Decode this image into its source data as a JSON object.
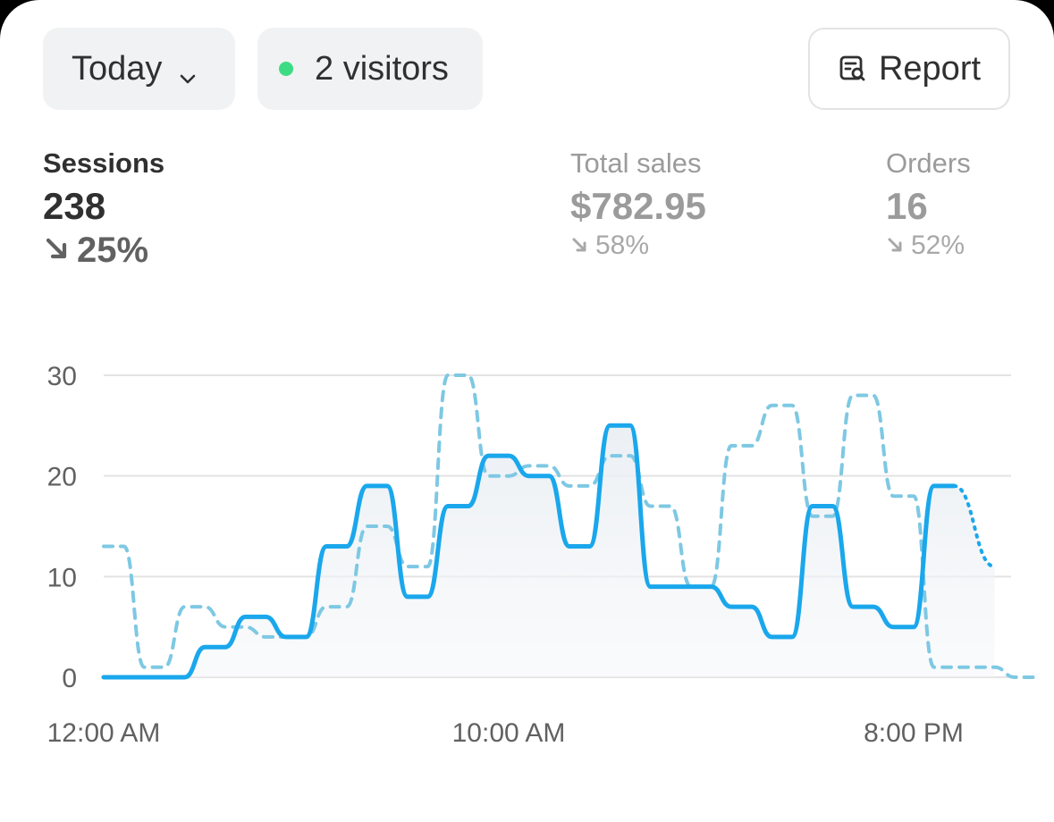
{
  "toolbar": {
    "date_range": "Today",
    "visitors_label": "2 visitors",
    "report_label": "Report",
    "live_color": "#3ddc84"
  },
  "metrics": {
    "sessions": {
      "label": "Sessions",
      "value": "238",
      "change": "25%"
    },
    "total_sales": {
      "label": "Total sales",
      "value": "$782.95",
      "change": "58%"
    },
    "orders": {
      "label": "Orders",
      "value": "16",
      "change": "52%"
    }
  },
  "chart_data": {
    "type": "line",
    "xlabel": "",
    "ylabel": "",
    "ylim": [
      0,
      30
    ],
    "y_ticks": [
      "0",
      "10",
      "20",
      "30"
    ],
    "x_tick_labels": [
      "12:00 AM",
      "10:00 AM",
      "8:00 PM"
    ],
    "x_tick_hours": [
      0,
      10,
      20
    ],
    "grid": true,
    "series": [
      {
        "style": "solid",
        "color": "#1aa7ec",
        "hours": [
          0,
          0.5,
          1,
          1.5,
          2,
          2.5,
          3,
          3.5,
          4,
          4.5,
          5,
          5.5,
          6,
          6.5,
          7,
          7.5,
          8,
          8.5,
          9,
          9.5,
          10,
          10.5,
          11,
          11.5,
          12,
          12.5,
          13,
          13.5,
          14,
          14.5,
          15,
          15.5,
          16,
          16.5,
          17,
          17.5,
          18,
          18.5,
          19,
          19.5,
          20,
          20.5,
          21
        ],
        "values": [
          0,
          0,
          0,
          0,
          0,
          3,
          3,
          6,
          6,
          4,
          4,
          13,
          13,
          19,
          19,
          8,
          8,
          17,
          17,
          22,
          22,
          20,
          20,
          13,
          13,
          25,
          25,
          9,
          9,
          9,
          9,
          7,
          7,
          4,
          4,
          17,
          17,
          7,
          7,
          5,
          5,
          19,
          19
        ],
        "projection_hours": [
          21,
          22
        ],
        "projection_values": [
          19,
          11
        ]
      },
      {
        "style": "dashed",
        "color": "#7ec8e3",
        "hours": [
          0,
          0.5,
          1,
          1.5,
          2,
          2.5,
          3,
          3.5,
          4,
          4.5,
          5,
          5.5,
          6,
          6.5,
          7,
          7.5,
          8,
          8.5,
          9,
          9.5,
          10,
          10.5,
          11,
          11.5,
          12,
          12.5,
          13,
          13.5,
          14,
          14.5,
          15,
          15.5,
          16,
          16.5,
          17,
          17.5,
          18,
          18.5,
          19,
          19.5,
          20,
          20.5,
          21,
          21.5,
          22,
          22.5,
          23
        ],
        "values": [
          13,
          13,
          1,
          1,
          7,
          7,
          5,
          5,
          4,
          4,
          4,
          7,
          7,
          15,
          15,
          11,
          11,
          30,
          30,
          20,
          20,
          21,
          21,
          19,
          19,
          22,
          22,
          17,
          17,
          9,
          9,
          23,
          23,
          27,
          27,
          16,
          16,
          28,
          28,
          18,
          18,
          1,
          1,
          1,
          1,
          0,
          0
        ]
      }
    ]
  }
}
